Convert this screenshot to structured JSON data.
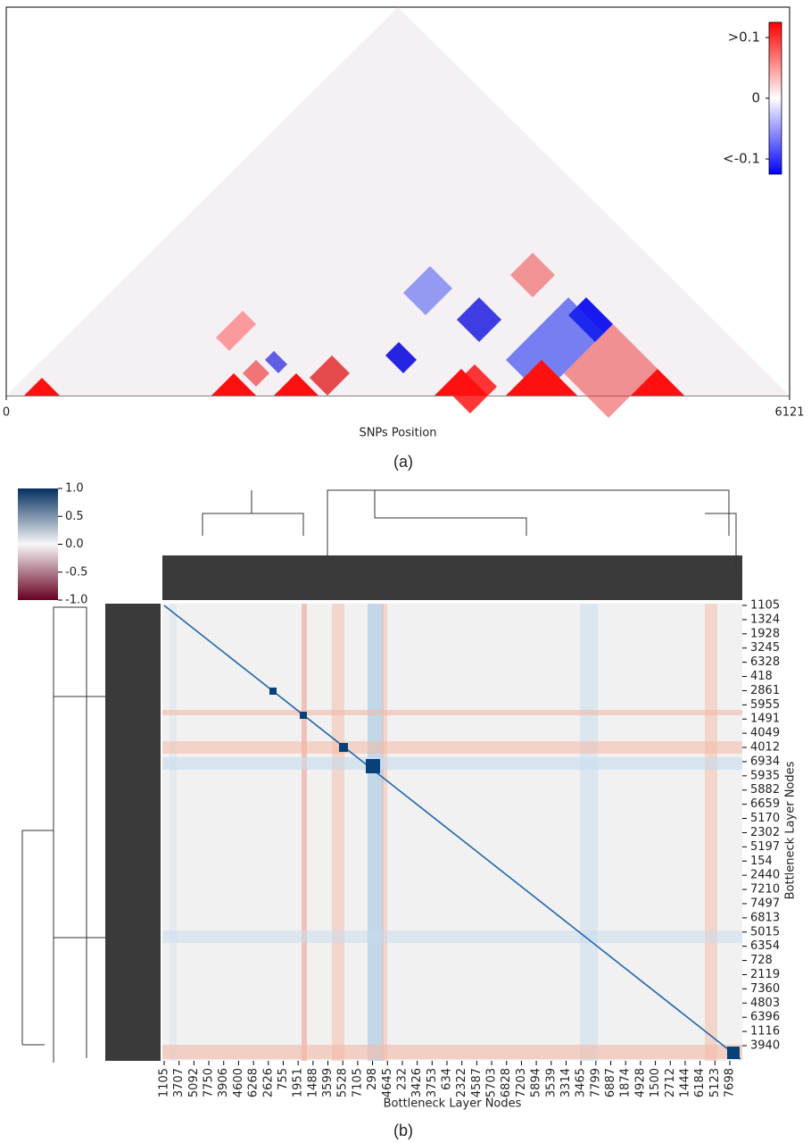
{
  "chart_data": [
    {
      "type": "triangle-heatmap",
      "xlabel": "SNPs Position",
      "xlim": [
        0,
        6121
      ],
      "xticks": [
        0,
        6121
      ],
      "clim": [
        -0.125,
        0.125
      ],
      "cticks": [
        {
          "value": 0.1,
          "label": ">0.1"
        },
        0,
        {
          "value": -0.1,
          "label": "<-0.1"
        }
      ],
      "colors": [
        "#0000ff",
        "#ffffff",
        "#ff0000"
      ],
      "caption": "(a)"
    },
    {
      "type": "clustermap",
      "xlabel": "Bottleneck Layer Nodes",
      "ylabel": "Bottleneck Layer Nodes",
      "categories": [
        "1105",
        "3707",
        "5092",
        "7750",
        "3906",
        "4600",
        "6268",
        "2626",
        "755",
        "1951",
        "1488",
        "3599",
        "5528",
        "7105",
        "298",
        "4645",
        "232",
        "3426",
        "3753",
        "634",
        "2322",
        "4587",
        "5703",
        "6828",
        "7203",
        "5894",
        "3539",
        "3314",
        "3465",
        "7799",
        "6887",
        "1874",
        "4928",
        "1500",
        "2712",
        "1444",
        "6184",
        "5123",
        "7698"
      ],
      "row_categories": [
        "1105",
        "1324",
        "1928",
        "3245",
        "6328",
        "418",
        "2861",
        "5955",
        "1491",
        "4049",
        "4012",
        "6934",
        "5935",
        "5882",
        "6659",
        "5170",
        "2302",
        "5197",
        "154",
        "2440",
        "7210",
        "7497",
        "6813",
        "5015",
        "6354",
        "728",
        "2119",
        "7360",
        "4803",
        "6396",
        "1116",
        "3940"
      ],
      "clim": [
        -1,
        1
      ],
      "cticks": [
        {
          "value": 1,
          "label": "1.0"
        },
        0.5,
        {
          "value": 0,
          "label": "0.0"
        },
        -0.5,
        {
          "value": -1,
          "label": "-1.0"
        }
      ],
      "colors": [
        "#67001f",
        "#f7f7f7",
        "#053061"
      ],
      "caption": "(b)"
    }
  ]
}
